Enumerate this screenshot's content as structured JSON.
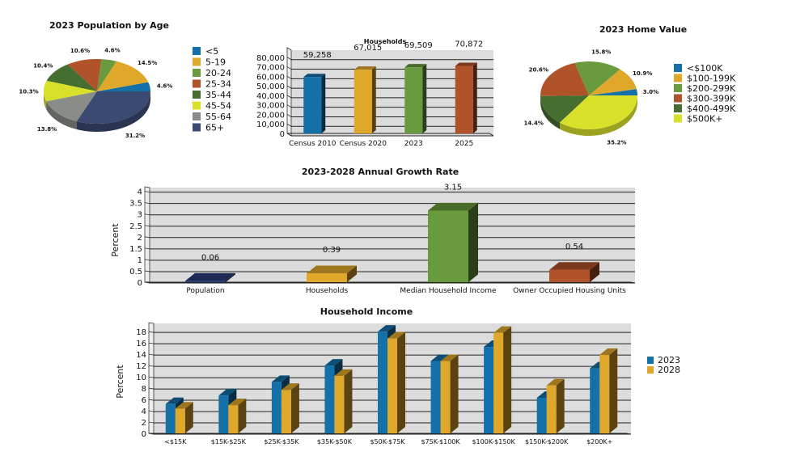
{
  "chart_data": [
    {
      "id": "pop",
      "type": "pie",
      "title": "2023 Population by Age",
      "labels": [
        "<5",
        "5-19",
        "20-24",
        "25-34",
        "35-44",
        "45-54",
        "55-64",
        "65+"
      ],
      "values": [
        4.6,
        14.5,
        4.6,
        10.6,
        10.4,
        10.3,
        13.8,
        31.2
      ],
      "value_labels": [
        "4.6%",
        "14.5%",
        "4.6%",
        "10.6%",
        "10.4%",
        "10.3%",
        "13.8%",
        "31.2%"
      ],
      "colors": [
        "#1470a8",
        "#e0a82a",
        "#6a9a3e",
        "#b0522a",
        "#466e30",
        "#d8e02a",
        "#8a8c88",
        "#3a4a70"
      ],
      "legend": "right"
    },
    {
      "id": "hh",
      "type": "bar",
      "title": "Households",
      "categories": [
        "Census 2010",
        "Census 2020",
        "2023",
        "2025"
      ],
      "values": [
        59258,
        67015,
        69509,
        70872
      ],
      "value_labels": [
        "59,258",
        "67,015",
        "69,509",
        "70,872"
      ],
      "colors": [
        "#1470a8",
        "#e0a82a",
        "#6a9a3e",
        "#b0522a"
      ],
      "ylim": [
        0,
        90000
      ],
      "yticks": [
        "0",
        "10,000",
        "20,000",
        "30,000",
        "40,000",
        "50,000",
        "60,000",
        "70,000",
        "80,000"
      ],
      "ytick_values": [
        0,
        10000,
        20000,
        30000,
        40000,
        50000,
        60000,
        70000,
        80000
      ],
      "grid": true
    },
    {
      "id": "home",
      "type": "pie",
      "title": "2023 Home Value",
      "labels": [
        "<$100K",
        "$100-199K",
        "$200-299K",
        "$300-399K",
        "$400-499K",
        "$500K+"
      ],
      "values": [
        3.0,
        10.9,
        15.8,
        20.6,
        14.4,
        35.2
      ],
      "value_labels": [
        "3.0%",
        "10.9%",
        "15.8%",
        "20.6%",
        "14.4%",
        "35.2%"
      ],
      "colors": [
        "#1470a8",
        "#e0a82a",
        "#6a9a3e",
        "#b0522a",
        "#466e30",
        "#d8e02a"
      ],
      "legend": "right"
    },
    {
      "id": "growth",
      "type": "bar",
      "title": "2023-2028 Annual Growth Rate",
      "ylabel": "Percent",
      "categories": [
        "Population",
        "Households",
        "Median Household Income",
        "Owner Occupied Housing Units"
      ],
      "values": [
        0.06,
        0.39,
        3.15,
        0.54
      ],
      "value_labels": [
        "0.06",
        "0.39",
        "3.15",
        "0.54"
      ],
      "colors": [
        "#2a3e78",
        "#e0a82a",
        "#6a9a3e",
        "#b0522a"
      ],
      "ylim": [
        0,
        4.2
      ],
      "yticks": [
        "0",
        "0.5",
        "1",
        "1.5",
        "2",
        "2.5",
        "3",
        "3.5",
        "4"
      ],
      "ytick_values": [
        0,
        0.5,
        1,
        1.5,
        2,
        2.5,
        3,
        3.5,
        4
      ],
      "grid": true
    },
    {
      "id": "income",
      "type": "bar",
      "title": "Household Income",
      "ylabel": "Percent",
      "categories": [
        "<$15K",
        "$15K-$25K",
        "$25K-$35K",
        "$35K-$50K",
        "$50K-$75K",
        "$75K-$100K",
        "$100K-$150K",
        "$150K-$200K",
        "$200K+"
      ],
      "series": [
        {
          "name": "2023",
          "color": "#1470a8",
          "values": [
            5.2,
            6.7,
            9.1,
            12.0,
            18.0,
            12.8,
            15.3,
            6.3,
            11.5
          ]
        },
        {
          "name": "2028",
          "color": "#e0a82a",
          "values": [
            4.4,
            5.0,
            7.7,
            10.2,
            16.8,
            12.8,
            17.8,
            8.5,
            13.9
          ]
        }
      ],
      "ylim": [
        0,
        19.6
      ],
      "yticks": [
        "0",
        "2",
        "4",
        "6",
        "8",
        "10",
        "12",
        "14",
        "16",
        "18"
      ],
      "ytick_values": [
        0,
        2,
        4,
        6,
        8,
        10,
        12,
        14,
        16,
        18
      ],
      "grid": true,
      "legend": "right"
    }
  ]
}
